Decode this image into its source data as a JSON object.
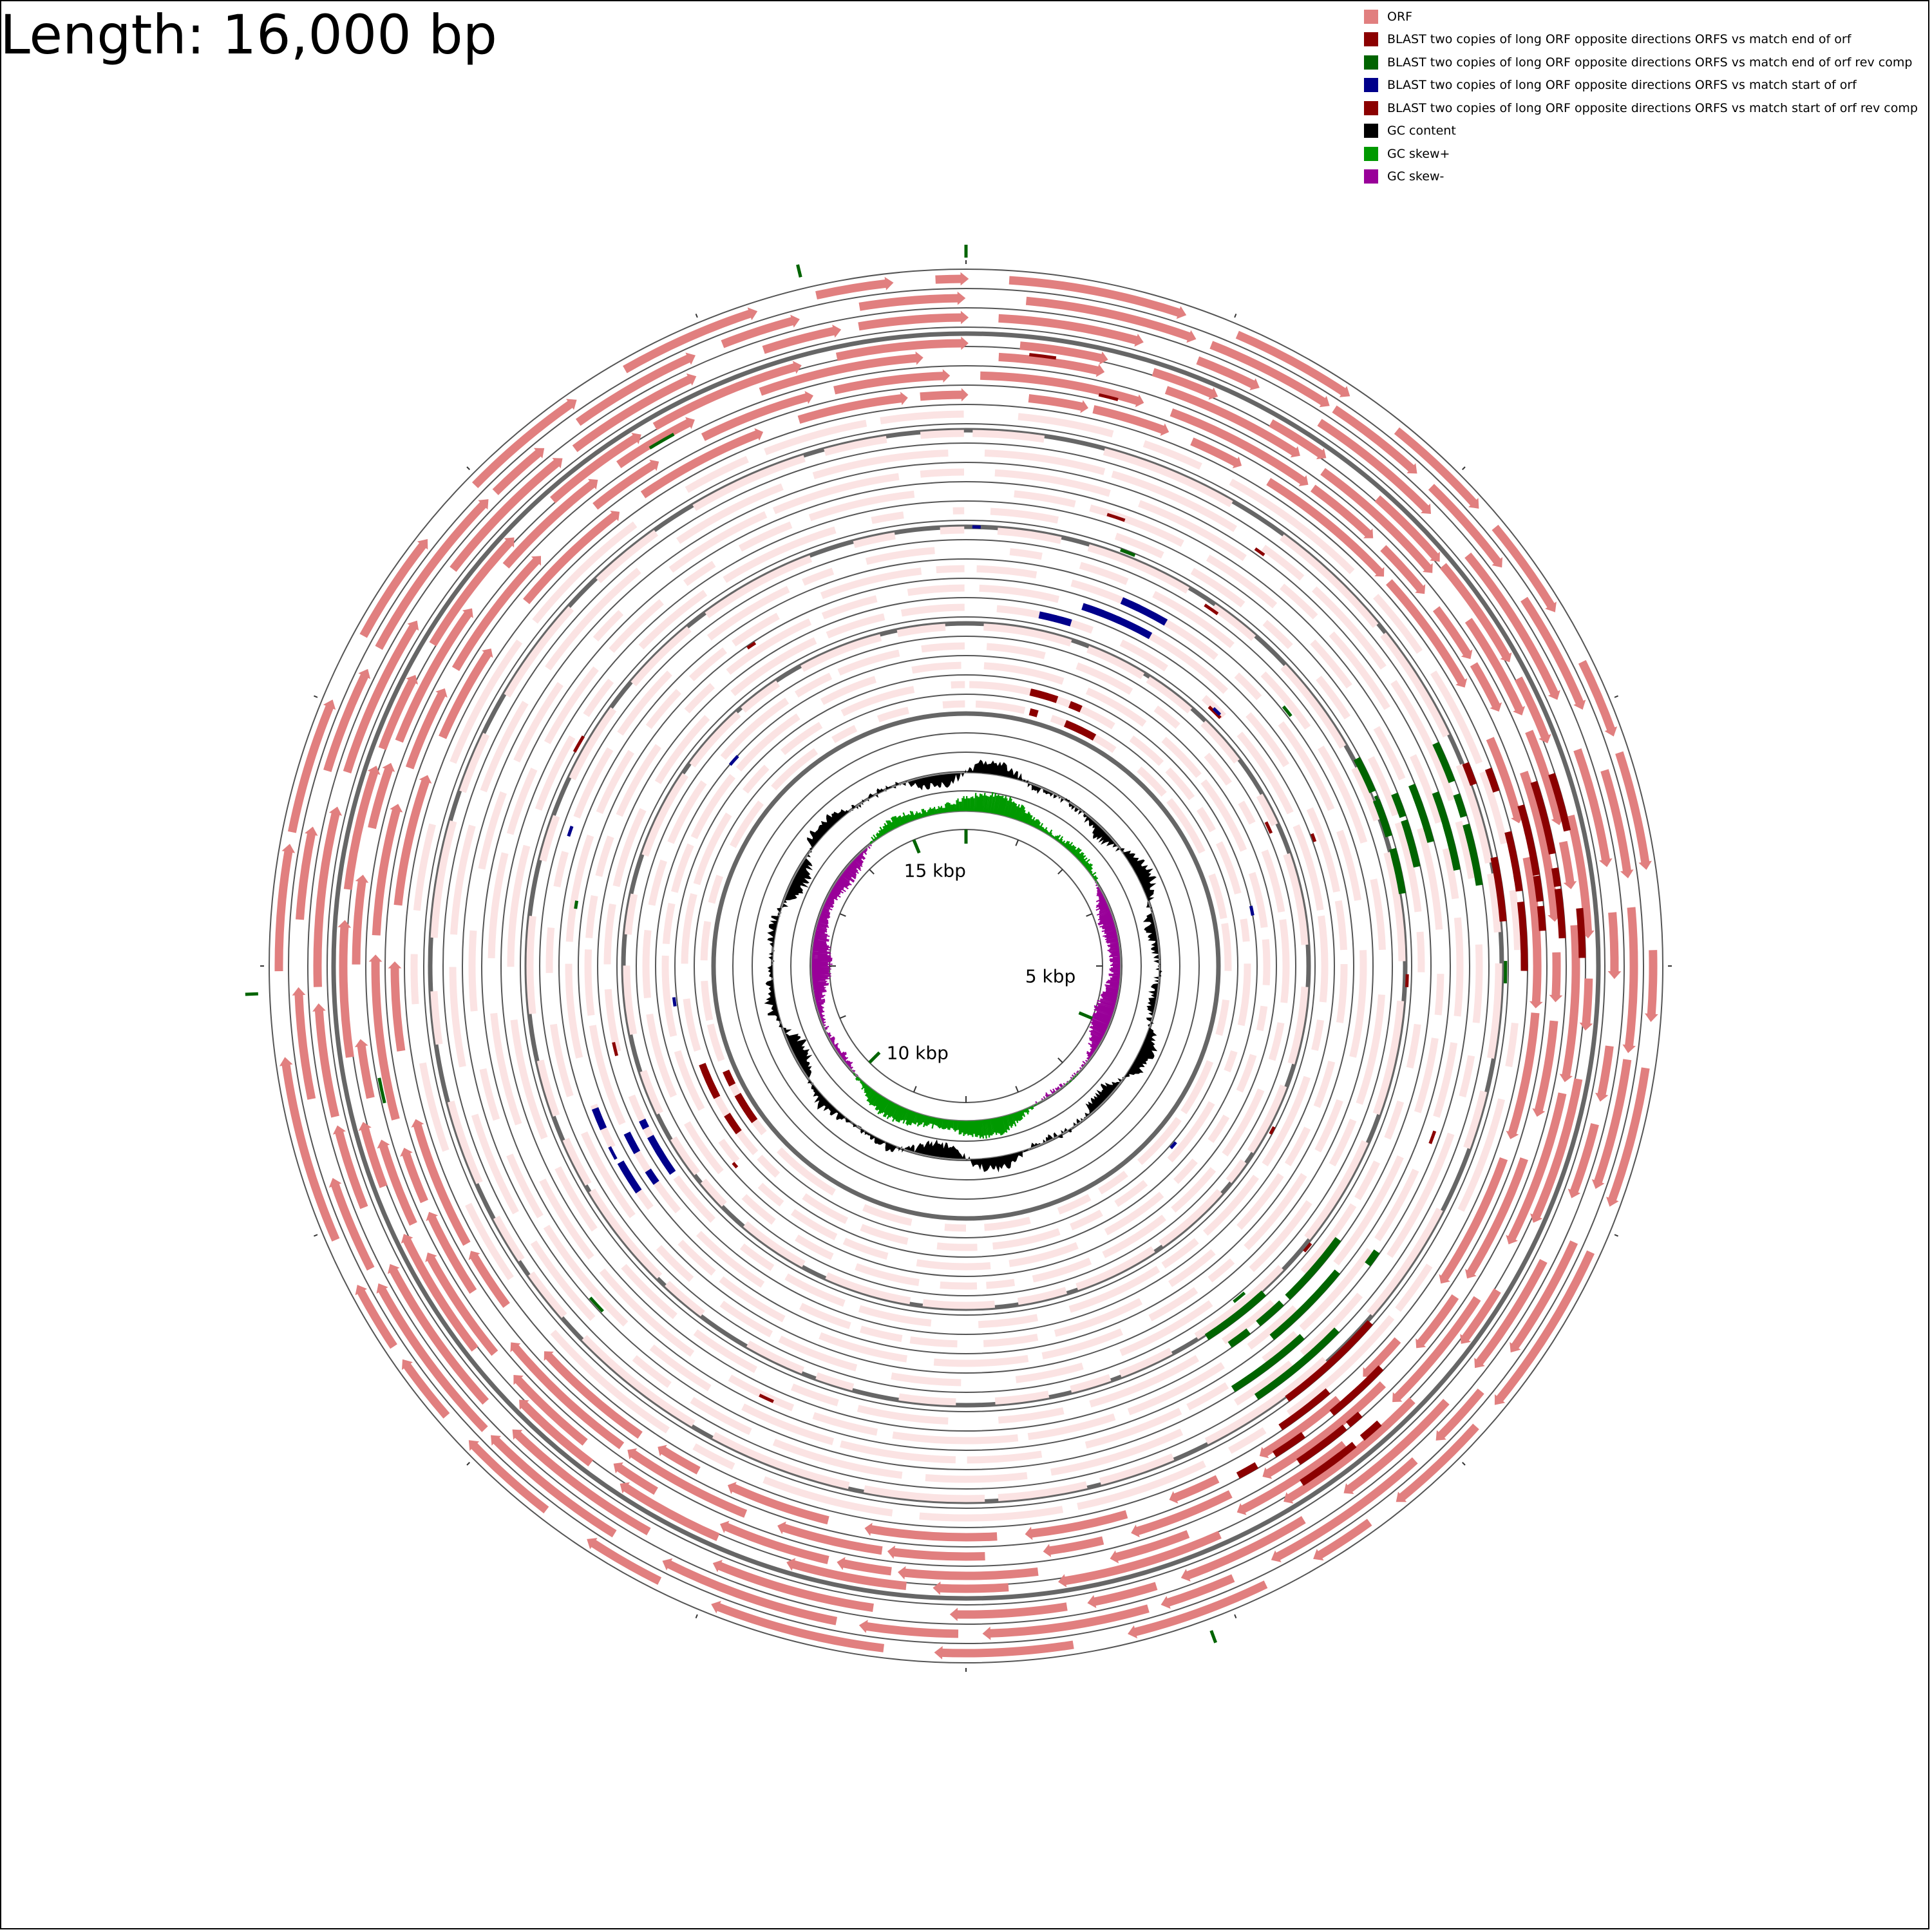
{
  "title": "Length: 16,000 bp",
  "legend": [
    {
      "label": "ORF",
      "color": "#e17f7f"
    },
    {
      "label": "BLAST two copies of long ORF opposite directions ORFS vs match end of orf",
      "color": "#8b0000"
    },
    {
      "label": "BLAST two copies of long ORF opposite directions ORFS vs match end of orf rev comp",
      "color": "#006400"
    },
    {
      "label": "BLAST two copies of long ORF opposite directions ORFS vs match start of orf",
      "color": "#00008b"
    },
    {
      "label": "BLAST two copies of long ORF opposite directions ORFS vs match start of orf rev comp",
      "color": "#8b0000"
    },
    {
      "label": "GC content",
      "color": "#000000"
    },
    {
      "label": "GC skew+",
      "color": "#009900"
    },
    {
      "label": "GC skew-",
      "color": "#990099"
    }
  ],
  "map": {
    "sequence_length_bp": 16000,
    "inner_labels": [
      "5 kbp",
      "10 kbp",
      "15 kbp"
    ],
    "colors": {
      "orf": "#e17f7f",
      "orf_faint": "#fbe3e3",
      "ring_line": "#555555",
      "gc_content": "#000000",
      "gc_skew_plus": "#009900",
      "gc_skew_minus": "#990099",
      "blast_end": "#8b0000",
      "blast_end_rc": "#006400",
      "blast_start": "#00008b",
      "blast_start_rc": "#8b0000"
    }
  }
}
